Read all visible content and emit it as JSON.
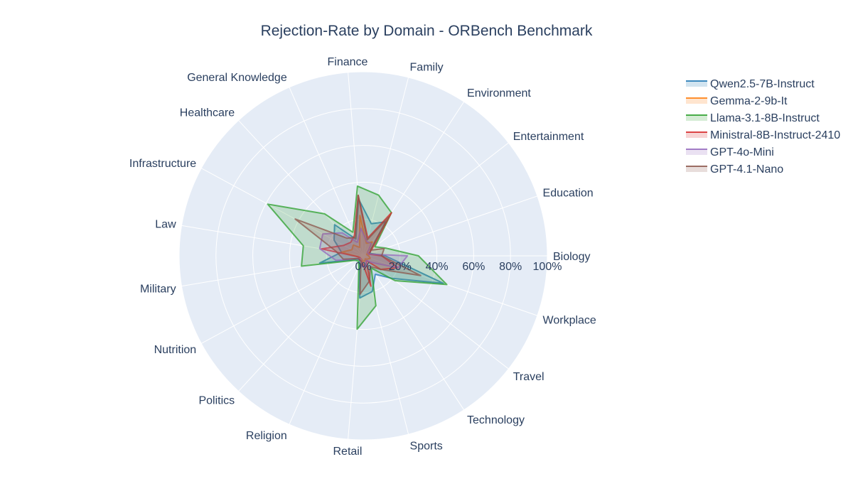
{
  "chart_data": {
    "type": "radar",
    "title": "Rejection-Rate by Domain - ORBench Benchmark",
    "categories": [
      "Biology",
      "Education",
      "Entertainment",
      "Environment",
      "Family",
      "Finance",
      "General Knowledge",
      "Healthcare",
      "Infrastructure",
      "Law",
      "Military",
      "Nutrition",
      "Politics",
      "Religion",
      "Retail",
      "Sports",
      "Technology",
      "Travel",
      "Workplace"
    ],
    "radial_ticks": [
      "0%",
      "20%",
      "40%",
      "60%",
      "80%",
      "100%"
    ],
    "range": [
      0,
      100
    ],
    "legend_position": "top-right",
    "fill": true,
    "background_color": "#e5ecf6",
    "series": [
      {
        "name": "Qwen2.5-7B-Instruct",
        "color": "#1f77b4",
        "values": [
          12,
          4,
          5,
          22,
          18,
          31,
          10,
          23,
          18,
          12,
          24,
          4,
          3,
          5,
          23,
          20,
          12,
          20,
          46
        ]
      },
      {
        "name": "Gemma-2-9b-It",
        "color": "#ff7f0e",
        "values": [
          3,
          2,
          3,
          9,
          7,
          22,
          5,
          8,
          7,
          12,
          3,
          2,
          2,
          2,
          3,
          3,
          2,
          3,
          4
        ]
      },
      {
        "name": "Llama-3.1-8B-Instruct",
        "color": "#2ca02c",
        "values": [
          30,
          13,
          8,
          28,
          34,
          38,
          14,
          31,
          59,
          33,
          34,
          5,
          4,
          6,
          40,
          28,
          8,
          22,
          48
        ]
      },
      {
        "name": "Ministral-8B-Instruct-2410",
        "color": "#d62728",
        "values": [
          10,
          3,
          6,
          28,
          10,
          33,
          12,
          10,
          12,
          23,
          3,
          2,
          3,
          3,
          4,
          17,
          3,
          12,
          20
        ]
      },
      {
        "name": "GPT-4o-Mini",
        "color": "#9467bd",
        "values": [
          24,
          3,
          3,
          8,
          8,
          15,
          8,
          17,
          25,
          24,
          15,
          3,
          2,
          3,
          6,
          6,
          3,
          6,
          20
        ]
      },
      {
        "name": "GPT-4.1-Nano",
        "color": "#8c564b",
        "values": [
          10,
          12,
          5,
          25,
          9,
          33,
          11,
          13,
          42,
          15,
          11,
          3,
          3,
          3,
          21,
          14,
          7,
          12,
          33
        ]
      }
    ]
  }
}
